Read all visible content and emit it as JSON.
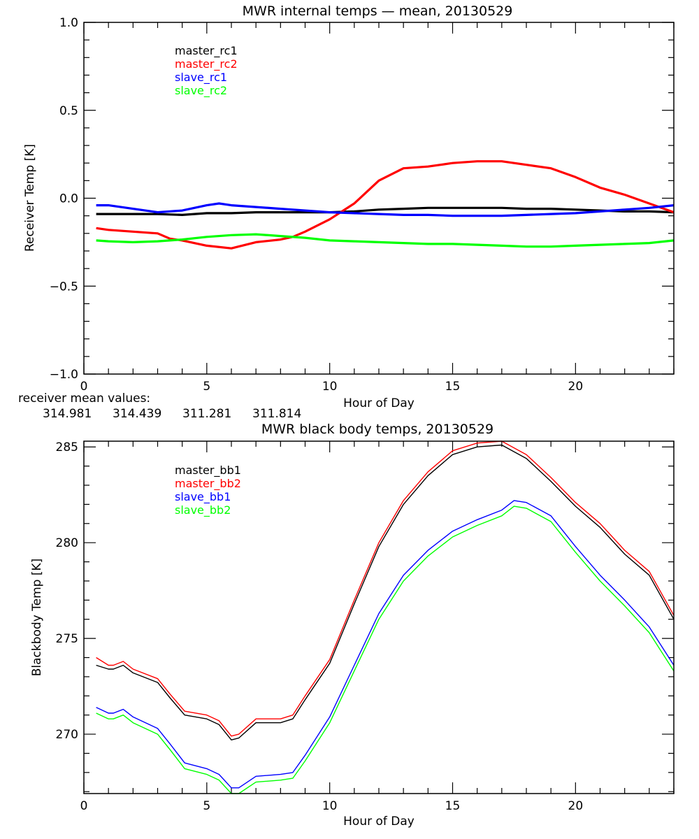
{
  "chart_data": [
    {
      "type": "line",
      "title": "MWR internal temps — mean, 20130529",
      "xlabel": "Hour of Day",
      "ylabel": "Receiver Temp [K]",
      "xlim": [
        0,
        24
      ],
      "ylim": [
        -1.0,
        1.0
      ],
      "xticks": [
        0,
        5,
        10,
        15,
        20
      ],
      "xtick_labels": [
        "0",
        "5",
        "10",
        "15",
        "20"
      ],
      "yticks": [
        -1.0,
        -0.5,
        0.0,
        0.5,
        1.0
      ],
      "ytick_labels": [
        "−1.0",
        "−0.5",
        "0.0",
        "0.5",
        "1.0"
      ],
      "grid": false,
      "legend_placement": "top-left",
      "series": [
        {
          "name": "master_rc1",
          "color": "#000000",
          "x": [
            0.5,
            1,
            2,
            3,
            4,
            5,
            6,
            7,
            8,
            9,
            10,
            11,
            12,
            13,
            14,
            15,
            16,
            17,
            18,
            19,
            20,
            21,
            22,
            23,
            24
          ],
          "y": [
            -0.09,
            -0.09,
            -0.09,
            -0.09,
            -0.095,
            -0.085,
            -0.085,
            -0.08,
            -0.08,
            -0.08,
            -0.08,
            -0.075,
            -0.065,
            -0.06,
            -0.055,
            -0.055,
            -0.055,
            -0.055,
            -0.06,
            -0.06,
            -0.065,
            -0.07,
            -0.075,
            -0.075,
            -0.08
          ]
        },
        {
          "name": "master_rc2",
          "color": "#ff0000",
          "x": [
            0.5,
            1,
            2,
            3,
            3.5,
            4,
            5,
            6,
            7,
            8,
            8.5,
            9,
            10,
            11,
            12,
            13,
            14,
            15,
            16,
            17,
            18,
            19,
            20,
            21,
            22,
            23,
            24
          ],
          "y": [
            -0.17,
            -0.18,
            -0.19,
            -0.2,
            -0.23,
            -0.24,
            -0.27,
            -0.285,
            -0.25,
            -0.235,
            -0.22,
            -0.19,
            -0.12,
            -0.03,
            0.1,
            0.17,
            0.18,
            0.2,
            0.21,
            0.21,
            0.19,
            0.17,
            0.12,
            0.06,
            0.02,
            -0.03,
            -0.08
          ]
        },
        {
          "name": "slave_rc1",
          "color": "#0000ff",
          "x": [
            0.5,
            1,
            2,
            3,
            4,
            5,
            5.5,
            6,
            7,
            8,
            9,
            10,
            11,
            12,
            13,
            14,
            15,
            16,
            17,
            18,
            19,
            20,
            21,
            22,
            23,
            24
          ],
          "y": [
            -0.04,
            -0.04,
            -0.06,
            -0.08,
            -0.07,
            -0.04,
            -0.03,
            -0.04,
            -0.05,
            -0.06,
            -0.07,
            -0.08,
            -0.085,
            -0.09,
            -0.095,
            -0.095,
            -0.1,
            -0.1,
            -0.1,
            -0.095,
            -0.09,
            -0.085,
            -0.075,
            -0.065,
            -0.055,
            -0.04
          ]
        },
        {
          "name": "slave_rc2",
          "color": "#00ff00",
          "x": [
            0.5,
            1,
            2,
            3,
            4,
            5,
            6,
            7,
            8,
            9,
            10,
            11,
            12,
            13,
            14,
            15,
            16,
            17,
            18,
            19,
            20,
            21,
            22,
            23,
            24
          ],
          "y": [
            -0.24,
            -0.245,
            -0.25,
            -0.245,
            -0.235,
            -0.22,
            -0.21,
            -0.205,
            -0.215,
            -0.225,
            -0.24,
            -0.245,
            -0.25,
            -0.255,
            -0.26,
            -0.26,
            -0.265,
            -0.27,
            -0.275,
            -0.275,
            -0.27,
            -0.265,
            -0.26,
            -0.255,
            -0.24
          ]
        }
      ]
    },
    {
      "type": "line",
      "title": "MWR black body temps, 20130529",
      "xlabel": "Hour of Day",
      "ylabel": "Blackbody Temp [K]",
      "xlim": [
        0,
        24
      ],
      "ylim": [
        266.9,
        285.3
      ],
      "xticks": [
        0,
        5,
        10,
        15,
        20
      ],
      "xtick_labels": [
        "0",
        "5",
        "10",
        "15",
        "20"
      ],
      "yticks": [
        270,
        275,
        280,
        285
      ],
      "ytick_labels": [
        "270",
        "275",
        "280",
        "285"
      ],
      "grid": false,
      "legend_placement": "top-left",
      "series": [
        {
          "name": "master_bb1",
          "color": "#000000",
          "x": [
            0.5,
            1,
            1.2,
            1.6,
            2,
            3,
            3.5,
            4.1,
            5,
            5.5,
            6,
            6.3,
            7,
            8,
            8.5,
            9,
            10,
            11,
            12,
            13,
            14,
            15,
            16,
            17,
            18,
            19,
            20,
            21,
            22,
            23,
            24
          ],
          "y": [
            273.6,
            273.4,
            273.4,
            273.6,
            273.2,
            272.7,
            271.9,
            271.0,
            270.8,
            270.5,
            269.7,
            269.8,
            270.6,
            270.6,
            270.8,
            271.8,
            273.7,
            276.8,
            279.8,
            282.0,
            283.5,
            284.6,
            285.0,
            285.1,
            284.4,
            283.2,
            281.9,
            280.8,
            279.4,
            278.3,
            276.0
          ]
        },
        {
          "name": "master_bb2",
          "color": "#ff0000",
          "x": [
            0.5,
            1,
            1.2,
            1.6,
            2,
            3,
            3.5,
            4.1,
            5,
            5.5,
            6,
            6.3,
            7,
            8,
            8.5,
            9,
            10,
            11,
            12,
            13,
            14,
            15,
            16,
            17,
            18,
            19,
            20,
            21,
            22,
            23,
            24
          ],
          "y": [
            274.0,
            273.6,
            273.6,
            273.8,
            273.4,
            272.9,
            272.1,
            271.2,
            271.0,
            270.7,
            269.9,
            270.0,
            270.8,
            270.8,
            271.0,
            272.0,
            273.9,
            277.0,
            280.0,
            282.2,
            283.7,
            284.8,
            285.2,
            285.3,
            284.6,
            283.4,
            282.1,
            281.0,
            279.6,
            278.5,
            276.2
          ]
        },
        {
          "name": "slave_bb1",
          "color": "#0000ff",
          "x": [
            0.5,
            1,
            1.2,
            1.6,
            2,
            3,
            3.5,
            4.1,
            5,
            5.5,
            6,
            6.3,
            7,
            8,
            8.5,
            9,
            10,
            11,
            12,
            13,
            14,
            15,
            16,
            17,
            17.5,
            18,
            19,
            20,
            21,
            22,
            23,
            24
          ],
          "y": [
            271.4,
            271.1,
            271.1,
            271.3,
            270.9,
            270.3,
            269.5,
            268.5,
            268.2,
            267.9,
            267.2,
            267.2,
            267.8,
            267.9,
            268.0,
            268.9,
            270.9,
            273.6,
            276.3,
            278.3,
            279.6,
            280.6,
            281.2,
            281.7,
            282.2,
            282.1,
            281.4,
            279.8,
            278.3,
            277.0,
            275.6,
            273.6
          ]
        },
        {
          "name": "slave_bb2",
          "color": "#00ff00",
          "x": [
            0.5,
            1,
            1.2,
            1.6,
            2,
            3,
            3.5,
            4.1,
            5,
            5.5,
            6,
            6.3,
            7,
            8,
            8.5,
            9,
            10,
            11,
            12,
            13,
            14,
            15,
            16,
            17,
            17.5,
            18,
            19,
            20,
            21,
            22,
            23,
            24
          ],
          "y": [
            271.1,
            270.8,
            270.8,
            271.0,
            270.6,
            270.0,
            269.2,
            268.2,
            267.9,
            267.6,
            266.9,
            266.9,
            267.5,
            267.6,
            267.7,
            268.6,
            270.6,
            273.3,
            276.0,
            278.0,
            279.3,
            280.3,
            280.9,
            281.4,
            281.9,
            281.8,
            281.1,
            279.5,
            278.0,
            276.7,
            275.3,
            273.3
          ]
        }
      ]
    }
  ],
  "receiver_mean": {
    "label": "receiver mean values:",
    "values": [
      {
        "value": "314.981",
        "color": "#000000"
      },
      {
        "value": "314.439",
        "color": "#ff0000"
      },
      {
        "value": "311.281",
        "color": "#0000ff"
      },
      {
        "value": "311.814",
        "color": "#00ff00"
      }
    ]
  }
}
